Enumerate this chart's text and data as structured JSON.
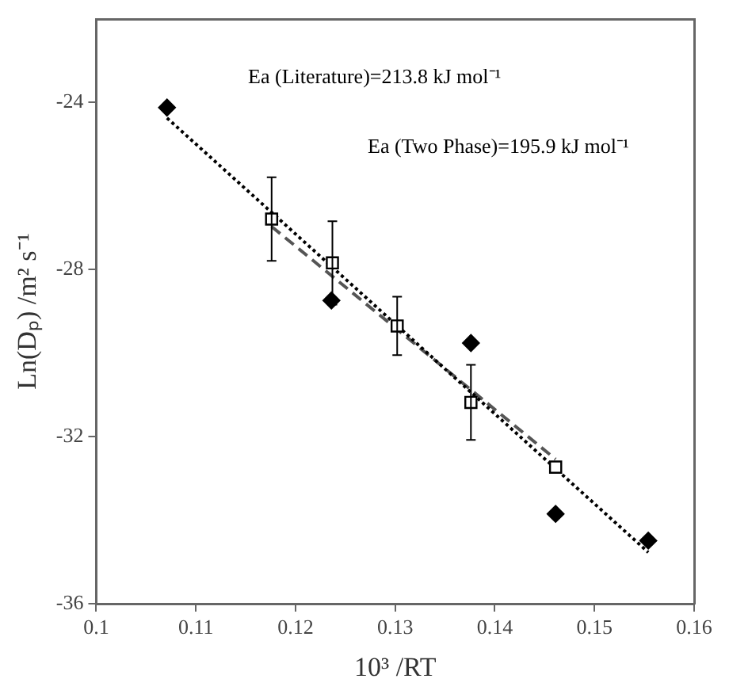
{
  "chart_data": {
    "type": "scatter",
    "xlabel": "10³ /RT",
    "ylabel": "Ln(Dₚ) /m² s⁻¹",
    "xlim": [
      0.1,
      0.16
    ],
    "xticks": [
      0.1,
      0.11,
      0.12,
      0.13,
      0.14,
      0.15,
      0.16
    ],
    "ylim": [
      -36,
      -22
    ],
    "yticks": [
      -36,
      -32,
      -28,
      -24
    ],
    "grid": false,
    "legend": false,
    "annotations": [
      "Ea (Literature)=213.8 kJ mol⁻¹",
      "Ea (Two Phase)=195.9 kJ mol⁻¹"
    ],
    "series": [
      {
        "type": "line",
        "marker": "none",
        "line_style": "dotted",
        "color": "#000000",
        "x": [
          0.1071,
          0.1554
        ],
        "values": [
          -24.37,
          -34.77
        ]
      },
      {
        "type": "line",
        "marker": "none",
        "line_style": "dashed",
        "color": "#555555",
        "x": [
          0.1176,
          0.1461
        ],
        "values": [
          -26.97,
          -32.54
        ]
      },
      {
        "marker": "diamond",
        "color": "#000000",
        "x": [
          0.1071,
          0.1236,
          0.1376,
          0.1461,
          0.1554
        ],
        "values": [
          -24.12,
          -28.74,
          -29.76,
          -33.85,
          -34.49
        ]
      },
      {
        "marker": "square",
        "color": "#000000",
        "x": [
          0.1176,
          0.1237,
          0.1302,
          0.1376,
          0.1461
        ],
        "values": [
          -26.79,
          -27.84,
          -29.35,
          -31.18,
          -32.73
        ],
        "errors": [
          1.0,
          1.0,
          0.7,
          0.9,
          null
        ]
      }
    ]
  }
}
